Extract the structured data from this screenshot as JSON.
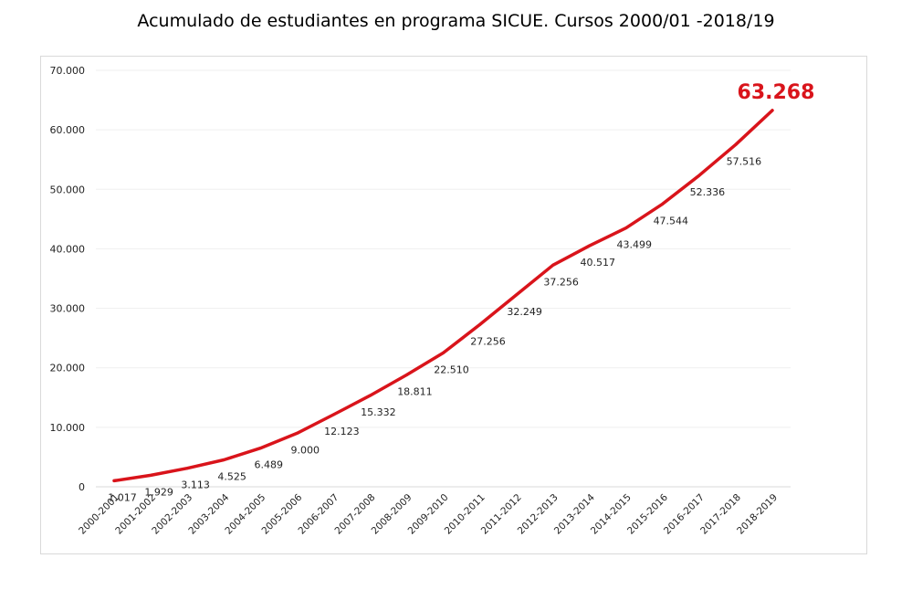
{
  "chart_data": {
    "type": "line",
    "title": "Acumulado de estudiantes en programa SICUE. Cursos 2000/01 -2018/19",
    "categories": [
      "2000-2001",
      "2001-2002",
      "2002-2003",
      "2003-2004",
      "2004-2005",
      "2005-2006",
      "2006-2007",
      "2007-2008",
      "2008-2009",
      "2009-2010",
      "2010-2011",
      "2011-2012",
      "2012-2013",
      "2013-2014",
      "2014-2015",
      "2015-2016",
      "2016-2017",
      "2017-2018",
      "2018-2019"
    ],
    "series": [
      {
        "name": "Acumulado",
        "color": "#d9141b",
        "values": [
          1017,
          1929,
          3113,
          4525,
          6489,
          9000,
          12123,
          15332,
          18811,
          22510,
          27256,
          32249,
          37256,
          40517,
          43499,
          47544,
          52336,
          57516,
          63268
        ]
      }
    ],
    "data_labels": [
      "1.017",
      "1.929",
      "3.113",
      "4.525",
      "6.489",
      "9.000",
      "12.123",
      "15.332",
      "18.811",
      "22.510",
      "27.256",
      "32.249",
      "37.256",
      "40.517",
      "43.499",
      "47.544",
      "52.336",
      "57.516",
      "63.268"
    ],
    "y_ticks": [
      "0",
      "10.000",
      "20.000",
      "30.000",
      "40.000",
      "50.000",
      "60.000",
      "70.000"
    ],
    "y_tick_values": [
      0,
      10000,
      20000,
      30000,
      40000,
      50000,
      60000,
      70000
    ],
    "ylim": [
      0,
      70000
    ],
    "xlabel": "",
    "ylabel": "",
    "grid": true,
    "highlight_color": "#d9141b"
  }
}
